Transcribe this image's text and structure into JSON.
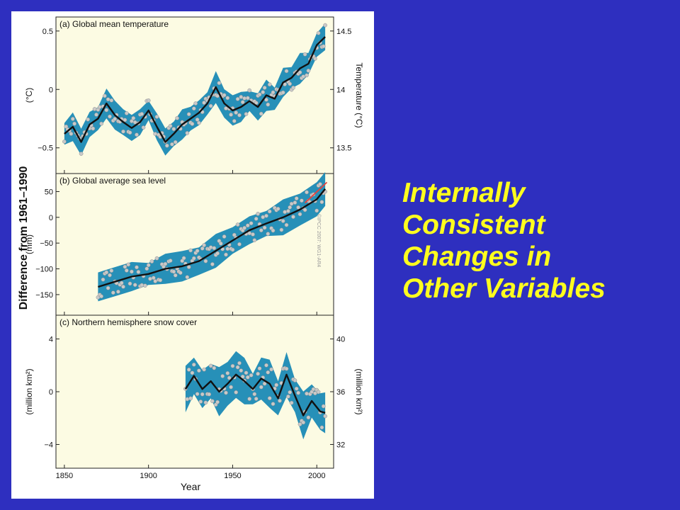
{
  "slide": {
    "caption_lines": [
      "Internally",
      "Consistent",
      "Changes in",
      "Other Variables"
    ],
    "colors": {
      "background": "#2e2fbf",
      "caption": "#ffff1e"
    }
  },
  "figure": {
    "shared_ylabel": "Difference from 1961–1990",
    "xlabel": "Year",
    "x_ticks": [
      1850,
      1900,
      1950,
      2000
    ],
    "credit": "©IPCC 2007: WG1-AR4",
    "colors": {
      "band": "#1b8ab5",
      "line": "#111111",
      "points": "#c9c9c9",
      "recent": "#e8413a",
      "panel_bg": "#fcfbe3"
    }
  },
  "chart_data": [
    {
      "type": "line",
      "title": "(a) Global mean temperature",
      "ylabel": "(°C)",
      "ylabel_right": "Temperature (°C)",
      "y_ticks": [
        -0.5,
        0.0,
        0.5
      ],
      "y_ticks_right": [
        13.5,
        14.0,
        14.5
      ],
      "ylim": [
        -0.72,
        0.62
      ],
      "x": [
        1850,
        1855,
        1860,
        1865,
        1870,
        1875,
        1880,
        1885,
        1890,
        1895,
        1900,
        1905,
        1910,
        1915,
        1920,
        1925,
        1930,
        1935,
        1940,
        1945,
        1950,
        1955,
        1960,
        1965,
        1970,
        1975,
        1980,
        1985,
        1990,
        1995,
        2000,
        2005
      ],
      "y": [
        -0.38,
        -0.32,
        -0.45,
        -0.3,
        -0.25,
        -0.12,
        -0.22,
        -0.28,
        -0.33,
        -0.28,
        -0.18,
        -0.32,
        -0.45,
        -0.38,
        -0.3,
        -0.25,
        -0.2,
        -0.12,
        0.02,
        -0.12,
        -0.18,
        -0.15,
        -0.1,
        -0.15,
        -0.05,
        -0.08,
        0.06,
        0.1,
        0.18,
        0.22,
        0.38,
        0.45
      ],
      "band": 0.11,
      "xlim": [
        1845,
        2010
      ]
    },
    {
      "type": "line",
      "title": "(b) Global average sea level",
      "ylabel": "(mm)",
      "y_ticks": [
        50,
        0,
        -50,
        -100,
        -150
      ],
      "ylim": [
        -190,
        85
      ],
      "x": [
        1870,
        1880,
        1890,
        1900,
        1910,
        1920,
        1930,
        1940,
        1950,
        1960,
        1970,
        1980,
        1990,
        2000,
        2005
      ],
      "y": [
        -135,
        -125,
        -115,
        -110,
        -100,
        -95,
        -85,
        -65,
        -45,
        -25,
        -12,
        0,
        15,
        35,
        55
      ],
      "band": 28,
      "recent_segment": {
        "x": [
          1993,
          2006
        ],
        "y": [
          28,
          68
        ]
      },
      "xlim": [
        1845,
        2010
      ]
    },
    {
      "type": "line",
      "title": "(c) Northern hemisphere snow cover",
      "ylabel": "(million km²)",
      "ylabel_right": "(million km²)",
      "y_ticks": [
        4,
        0,
        -4
      ],
      "y_ticks_right": [
        40,
        36,
        32
      ],
      "ylim": [
        -5.8,
        5.8
      ],
      "x": [
        1922,
        1927,
        1932,
        1937,
        1942,
        1947,
        1952,
        1957,
        1962,
        1967,
        1972,
        1977,
        1982,
        1987,
        1992,
        1997,
        2002,
        2005
      ],
      "y": [
        0.2,
        1.2,
        0.2,
        0.8,
        0.0,
        0.6,
        1.3,
        0.8,
        0.2,
        1.0,
        0.6,
        -0.5,
        1.3,
        -0.3,
        -1.8,
        -0.7,
        -1.5,
        -1.6
      ],
      "band": 1.5,
      "xlim": [
        1845,
        2010
      ]
    }
  ]
}
